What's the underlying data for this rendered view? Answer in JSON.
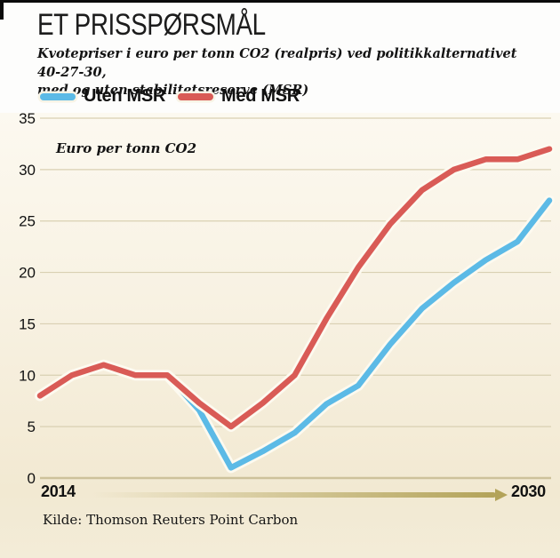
{
  "page": {
    "title": "ET PRISSPØRSMÅL",
    "subtitle_lines": [
      "Kvotepriser i euro per tonn CO2 (realpris) ved politikkalternativet 40-27-30,",
      "med og uten stabilitetsreserve (MSR)"
    ],
    "source": "Kilde: Thomson Reuters Point Carbon"
  },
  "legend": [
    {
      "label": "Uten MSR",
      "color": "#5cbae6"
    },
    {
      "label": "Med MSR",
      "color": "#d95b56"
    }
  ],
  "axis": {
    "x_start_label": "2014",
    "x_end_label": "2030",
    "arrow_color": "#b3a359",
    "arrow_fade_color": "rgba(235,228,205,0)"
  },
  "chart_data": {
    "type": "line",
    "title": "ET PRISSPØRSMÅL",
    "unit_label": "Euro per tonn CO2",
    "x": [
      2014,
      2015,
      2016,
      2017,
      2018,
      2019,
      2020,
      2021,
      2022,
      2023,
      2024,
      2025,
      2026,
      2027,
      2028,
      2029,
      2030
    ],
    "series": [
      {
        "name": "Uten MSR",
        "color": "#5cbae6",
        "values": [
          8,
          10,
          11,
          10,
          10,
          6.6,
          1,
          2.6,
          4.4,
          7.2,
          9,
          13,
          16.5,
          19,
          21.2,
          23,
          27
        ]
      },
      {
        "name": "Med MSR",
        "color": "#d95b56",
        "values": [
          8,
          10,
          11,
          10,
          10,
          7.3,
          5,
          7.3,
          10,
          15.5,
          20.5,
          24.7,
          28,
          30,
          31,
          31,
          32
        ]
      }
    ],
    "ylim": [
      0,
      35
    ],
    "yticks": [
      0,
      5,
      10,
      15,
      20,
      25,
      30,
      35
    ],
    "xtick_labels": [
      "2014",
      "2030"
    ],
    "grid": true,
    "legend_position": "top-left",
    "styling": {
      "grid_color": "#d9d0b2",
      "baseline_color": "#cdc29b",
      "line_halo_color": "#fdfaf0",
      "background_top": "#fcf9f0",
      "background_bottom": "#f2e9d2",
      "tick_label_color": "#111111"
    }
  }
}
